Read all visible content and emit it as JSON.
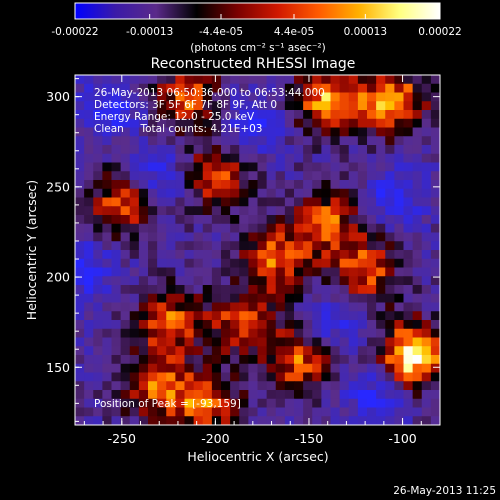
{
  "colorbar": {
    "tick_labels": [
      "-0.00022",
      "-0.00013",
      "-4.4e-05",
      "4.4e-05",
      "0.00013",
      "0.00022"
    ],
    "tick_values": [
      -0.00022,
      -0.00013,
      -4.4e-05,
      4.4e-05,
      0.00013,
      0.00022
    ],
    "range": [
      -0.00022,
      0.00022
    ],
    "units_label": "(photons cm⁻² s⁻¹ asec⁻²)",
    "palette": [
      "#0000ff",
      "#3a1aa8",
      "#5a2a8a",
      "#000000",
      "#7a0000",
      "#d01800",
      "#ff5a00",
      "#ffb000",
      "#ffff80",
      "#ffffff"
    ]
  },
  "plot": {
    "title": "Reconstructed RHESSI Image",
    "xlabel": "Heliocentric X (arcsec)",
    "ylabel": "Heliocentric Y (arcsec)",
    "x_ticks": [
      "-250",
      "-200",
      "-150",
      "-100"
    ],
    "y_ticks": [
      "150",
      "200",
      "250",
      "300"
    ],
    "info_lines": [
      "26-May-2013 06:50:36.000 to 06:53:44.000",
      "Detectors: 3F 5F 6F 7F 8F 9F, Att 0",
      "Energy Range: 12.0 - 25.0 keV",
      "Clean     Total counts: 4.21E+03"
    ],
    "peak_label": "Position of Peak = [-93,159]"
  },
  "footer": {
    "timestamp": "26-May-2013 11:25"
  },
  "chart_data": {
    "type": "heatmap",
    "title": "Reconstructed RHESSI Image",
    "xlabel": "Heliocentric X (arcsec)",
    "ylabel": "Heliocentric Y (arcsec)",
    "xlim": [
      -275,
      -80
    ],
    "ylim": [
      118,
      312
    ],
    "x_ticks": [
      -250,
      -200,
      -150,
      -100
    ],
    "y_ticks": [
      150,
      200,
      250,
      300
    ],
    "colorbar_range": [
      -0.00022,
      0.00022
    ],
    "peak": [
      -93,
      159
    ],
    "bright_sources": [
      {
        "x": -95,
        "y": 157
      },
      {
        "x": -105,
        "y": 297
      },
      {
        "x": -140,
        "y": 298
      },
      {
        "x": -205,
        "y": 130
      },
      {
        "x": -233,
        "y": 140
      },
      {
        "x": -155,
        "y": 153
      },
      {
        "x": -168,
        "y": 210
      },
      {
        "x": -120,
        "y": 203
      },
      {
        "x": -250,
        "y": 240
      },
      {
        "x": -225,
        "y": 175
      },
      {
        "x": -200,
        "y": 255
      },
      {
        "x": -215,
        "y": 300
      },
      {
        "x": -185,
        "y": 175
      },
      {
        "x": -140,
        "y": 230
      }
    ],
    "negative_sources": [
      {
        "x": -270,
        "y": 205
      },
      {
        "x": -230,
        "y": 255
      },
      {
        "x": -180,
        "y": 285
      },
      {
        "x": -105,
        "y": 245
      },
      {
        "x": -135,
        "y": 175
      },
      {
        "x": -115,
        "y": 135
      },
      {
        "x": -255,
        "y": 295
      }
    ]
  }
}
